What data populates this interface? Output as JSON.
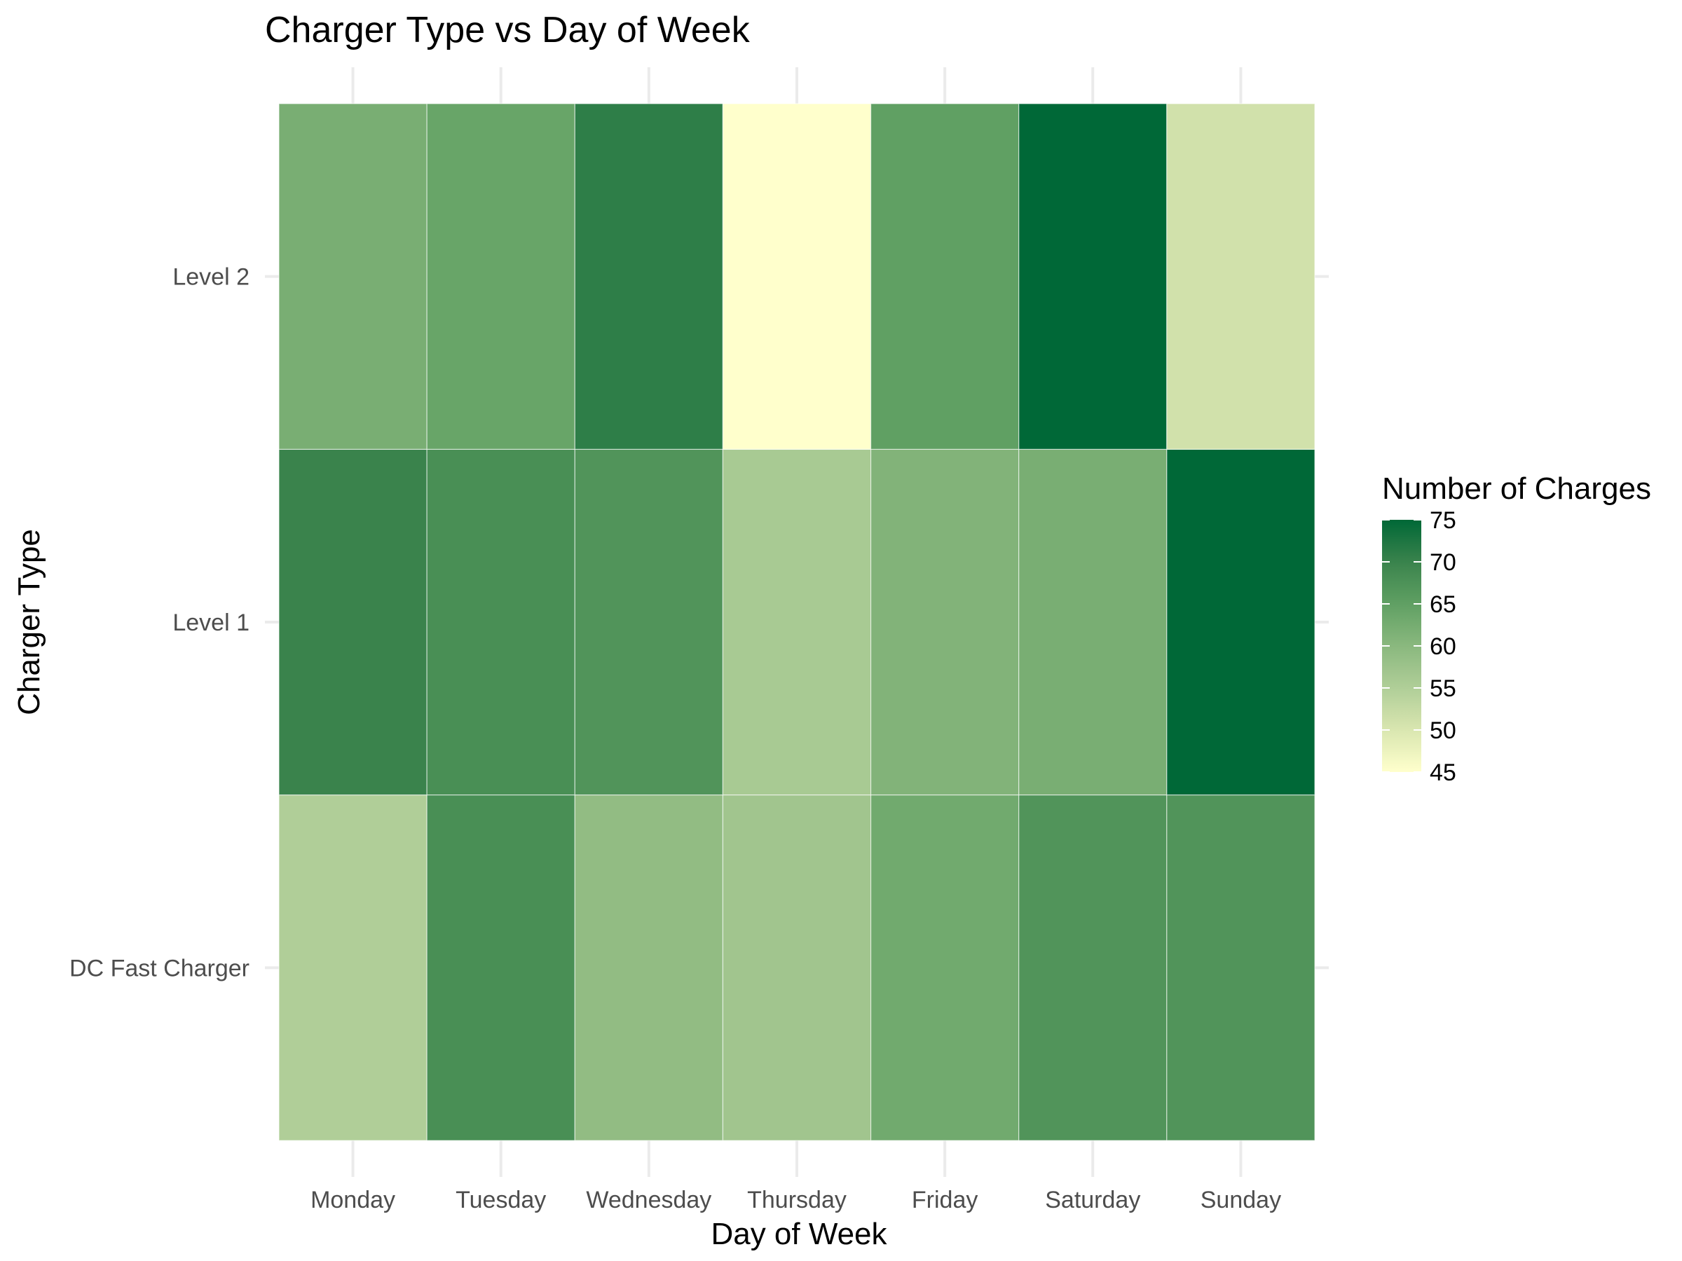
{
  "chart_data": {
    "type": "heatmap",
    "title": "Charger Type vs Day of Week",
    "xlabel": "Day of Week",
    "ylabel": "Charger Type",
    "x_categories": [
      "Monday",
      "Tuesday",
      "Wednesday",
      "Thursday",
      "Friday",
      "Saturday",
      "Sunday"
    ],
    "y_categories": [
      "DC Fast Charger",
      "Level 1",
      "Level 2"
    ],
    "values": [
      [
        55,
        68,
        59,
        57,
        63,
        67,
        67
      ],
      [
        70,
        68,
        67,
        56,
        61,
        62,
        75
      ],
      [
        62,
        64,
        71,
        45,
        65,
        75,
        51
      ]
    ],
    "legend": {
      "title": "Number of Charges",
      "ticks": [
        45,
        50,
        55,
        60,
        65,
        70,
        75
      ],
      "range": [
        45,
        75
      ],
      "low_color": "#FFFFCC",
      "high_color": "#006837",
      "placement": "right"
    },
    "grid": true
  }
}
